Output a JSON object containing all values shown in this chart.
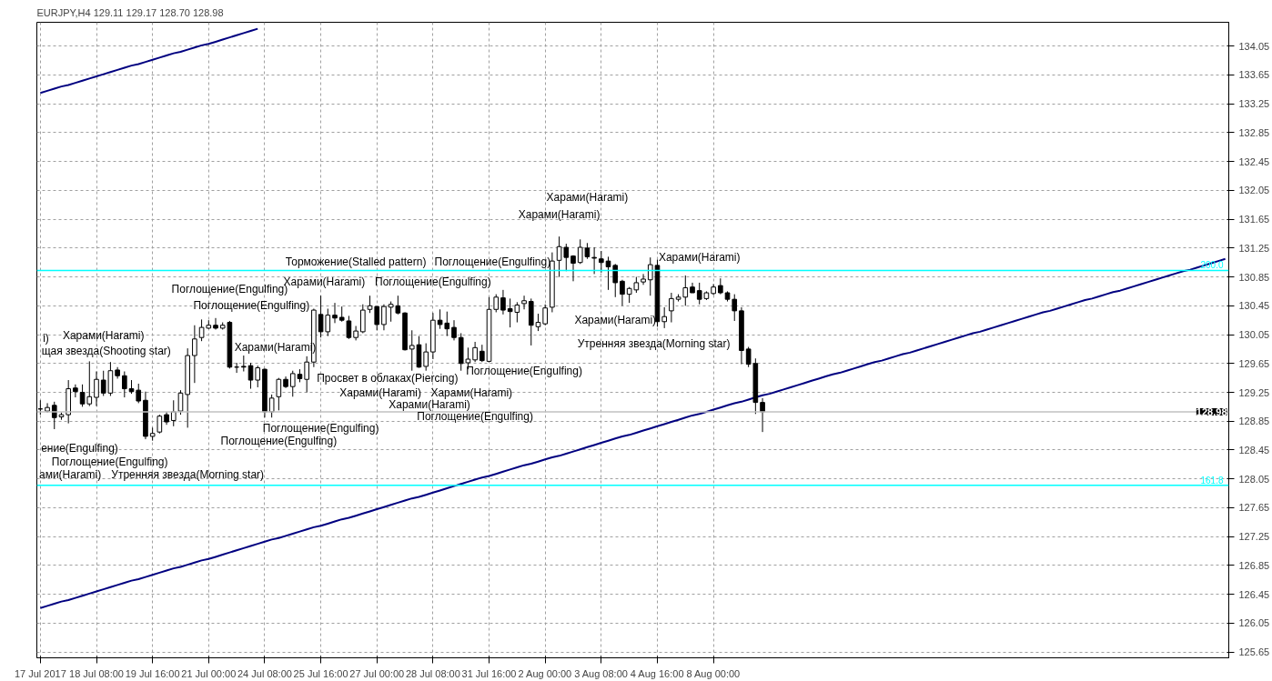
{
  "chart_data": {
    "type": "candlestick",
    "title": "EURJPY,H4  129.11 129.17 128.70 128.98",
    "categories": [
      "17 Jul 2017",
      null,
      null,
      null,
      null,
      null,
      null,
      null,
      "18 Jul 08:00",
      null,
      null,
      null,
      null,
      null,
      null,
      null,
      "19 Jul 16:00",
      null,
      null,
      null,
      null,
      null,
      null,
      null,
      "21 Jul 00:00",
      null,
      null,
      null,
      null,
      null,
      null,
      null,
      "24 Jul 08:00",
      null,
      null,
      null,
      null,
      null,
      null,
      null,
      "25 Jul 16:00",
      null,
      null,
      null,
      null,
      null,
      null,
      null,
      "27 Jul 00:00",
      null,
      null,
      null,
      null,
      null,
      null,
      null,
      "28 Jul 08:00",
      null,
      null,
      null,
      null,
      null,
      null,
      null,
      "31 Jul 16:00",
      null,
      null,
      null,
      null,
      null,
      null,
      null,
      "2 Aug 00:00",
      null,
      null,
      null,
      null,
      null,
      null,
      null,
      "3 Aug 08:00",
      null,
      null,
      null,
      null,
      null,
      null,
      null,
      "4 Aug 16:00",
      null,
      null,
      null,
      null,
      null,
      null,
      null,
      "8 Aug 00:00",
      null,
      null,
      null,
      null,
      null,
      null,
      null,
      null,
      null,
      null,
      null,
      null,
      null,
      null,
      null,
      null,
      null,
      null,
      null,
      null,
      null,
      null,
      null,
      null,
      null,
      null,
      null,
      null,
      null,
      null,
      null,
      null,
      null,
      null,
      null,
      null,
      null,
      null,
      null,
      null,
      null,
      null,
      null,
      null,
      null,
      null,
      null,
      null,
      null,
      null,
      null,
      null,
      null,
      null,
      null,
      null,
      null,
      null,
      null,
      null,
      null,
      null,
      null,
      null,
      null,
      null,
      null,
      null,
      null,
      null,
      null,
      null,
      null
    ],
    "ohlc": [
      [
        129.02,
        129.14,
        128.94,
        129.02
      ],
      [
        128.99,
        129.1,
        128.97,
        129.04
      ],
      [
        129.07,
        129.12,
        128.74,
        128.9
      ],
      [
        128.91,
        128.97,
        128.87,
        128.94
      ],
      [
        128.94,
        129.42,
        128.82,
        129.3
      ],
      [
        129.31,
        129.36,
        129.18,
        129.26
      ],
      [
        129.25,
        129.36,
        129.05,
        129.09
      ],
      [
        129.09,
        129.68,
        129.06,
        129.19
      ],
      [
        129.18,
        129.54,
        129.06,
        129.43
      ],
      [
        129.42,
        129.55,
        129.2,
        129.24
      ],
      [
        129.24,
        129.67,
        129.2,
        129.55
      ],
      [
        129.56,
        129.6,
        129.44,
        129.48
      ],
      [
        129.48,
        129.54,
        129.18,
        129.3
      ],
      [
        129.3,
        129.42,
        129.23,
        129.26
      ],
      [
        129.28,
        129.37,
        129.1,
        129.13
      ],
      [
        129.14,
        129.26,
        128.6,
        128.64
      ],
      [
        128.64,
        128.76,
        128.58,
        128.68
      ],
      [
        128.7,
        128.94,
        128.68,
        128.92
      ],
      [
        128.94,
        128.98,
        128.8,
        128.84
      ],
      [
        128.86,
        129.14,
        128.78,
        128.98
      ],
      [
        128.99,
        129.28,
        128.94,
        129.24
      ],
      [
        129.22,
        129.86,
        128.76,
        129.76
      ],
      [
        129.76,
        130.18,
        129.38,
        129.99
      ],
      [
        130.01,
        130.26,
        129.96,
        130.15
      ],
      [
        130.14,
        130.25,
        130.13,
        130.18
      ],
      [
        130.18,
        130.28,
        130.12,
        130.14
      ],
      [
        130.14,
        130.22,
        130.12,
        130.18
      ],
      [
        130.22,
        130.24,
        129.58,
        129.6
      ],
      [
        129.6,
        129.66,
        129.52,
        129.6
      ],
      [
        129.61,
        129.76,
        129.54,
        129.6
      ],
      [
        129.62,
        129.66,
        129.3,
        129.42
      ],
      [
        129.42,
        129.62,
        129.32,
        129.59
      ],
      [
        129.57,
        129.58,
        128.9,
        128.98
      ],
      [
        128.98,
        129.22,
        128.9,
        129.17
      ],
      [
        129.19,
        129.45,
        129.0,
        129.43
      ],
      [
        129.43,
        129.47,
        129.31,
        129.33
      ],
      [
        129.33,
        129.55,
        129.19,
        129.51
      ],
      [
        129.5,
        129.57,
        129.39,
        129.44
      ],
      [
        129.43,
        129.75,
        129.25,
        129.67
      ],
      [
        129.67,
        130.41,
        129.6,
        130.39
      ],
      [
        130.33,
        130.59,
        130.01,
        130.09
      ],
      [
        130.09,
        130.41,
        130.03,
        130.32
      ],
      [
        130.32,
        130.49,
        130.21,
        130.28
      ],
      [
        130.29,
        130.44,
        130.23,
        130.25
      ],
      [
        130.24,
        130.31,
        129.99,
        130.01
      ],
      [
        130.01,
        130.17,
        129.97,
        130.1
      ],
      [
        130.09,
        130.47,
        130.07,
        130.39
      ],
      [
        130.4,
        130.59,
        130.35,
        130.45
      ],
      [
        130.44,
        130.44,
        130.11,
        130.19
      ],
      [
        130.19,
        130.47,
        130.11,
        130.44
      ],
      [
        130.43,
        130.51,
        130.23,
        130.47
      ],
      [
        130.45,
        130.59,
        130.33,
        130.35
      ],
      [
        130.35,
        130.36,
        129.83,
        129.84
      ],
      [
        129.85,
        130.11,
        129.55,
        129.9
      ],
      [
        129.91,
        130.03,
        129.59,
        129.6
      ],
      [
        129.61,
        129.93,
        129.55,
        129.81
      ],
      [
        129.81,
        130.35,
        129.71,
        130.25
      ],
      [
        130.25,
        130.4,
        130.13,
        130.19
      ],
      [
        130.21,
        130.37,
        130.03,
        130.13
      ],
      [
        130.15,
        130.25,
        129.97,
        130.01
      ],
      [
        130.01,
        130.07,
        129.55,
        129.65
      ],
      [
        129.66,
        129.87,
        129.57,
        129.71
      ],
      [
        129.7,
        129.95,
        129.67,
        129.87
      ],
      [
        129.82,
        129.91,
        129.67,
        129.69
      ],
      [
        129.68,
        130.57,
        129.67,
        130.4
      ],
      [
        130.4,
        130.61,
        130.36,
        130.57
      ],
      [
        130.56,
        130.67,
        130.33,
        130.39
      ],
      [
        130.41,
        130.55,
        130.15,
        130.37
      ],
      [
        130.36,
        130.5,
        130.22,
        130.46
      ],
      [
        130.48,
        130.59,
        130.4,
        130.52
      ],
      [
        130.51,
        130.55,
        129.9,
        130.18
      ],
      [
        130.16,
        130.34,
        130.1,
        130.22
      ],
      [
        130.2,
        130.47,
        130.18,
        130.42
      ],
      [
        130.43,
        131.19,
        130.36,
        131.07
      ],
      [
        131.08,
        131.41,
        130.85,
        131.27
      ],
      [
        131.26,
        131.31,
        130.93,
        131.12
      ],
      [
        131.14,
        131.15,
        130.79,
        131.04
      ],
      [
        131.05,
        131.37,
        131.03,
        131.26
      ],
      [
        131.25,
        131.32,
        131.1,
        131.13
      ],
      [
        131.12,
        131.26,
        130.89,
        131.11
      ],
      [
        131.1,
        131.21,
        130.91,
        131.05
      ],
      [
        131.07,
        131.13,
        130.67,
        130.99
      ],
      [
        131.01,
        131.03,
        130.57,
        130.77
      ],
      [
        130.79,
        130.81,
        130.45,
        130.61
      ],
      [
        130.61,
        130.71,
        130.49,
        130.69
      ],
      [
        130.67,
        130.85,
        130.63,
        130.77
      ],
      [
        130.78,
        130.89,
        130.74,
        130.82
      ],
      [
        130.81,
        131.12,
        130.59,
        131.02
      ],
      [
        131.01,
        131.09,
        130.16,
        130.23
      ],
      [
        130.23,
        130.43,
        130.14,
        130.3
      ],
      [
        130.38,
        130.63,
        130.22,
        130.55
      ],
      [
        130.54,
        130.61,
        130.51,
        130.57
      ],
      [
        130.57,
        130.87,
        130.45,
        130.7
      ],
      [
        130.71,
        130.77,
        130.63,
        130.63
      ],
      [
        130.66,
        130.77,
        130.47,
        130.54
      ],
      [
        130.55,
        130.65,
        130.53,
        130.63
      ],
      [
        130.62,
        130.75,
        130.6,
        130.71
      ],
      [
        130.73,
        130.83,
        130.61,
        130.63
      ],
      [
        130.63,
        130.65,
        130.51,
        130.54
      ],
      [
        130.54,
        130.61,
        130.24,
        130.38
      ],
      [
        130.38,
        130.43,
        129.64,
        129.83
      ],
      [
        129.85,
        129.88,
        129.6,
        129.64
      ],
      [
        129.65,
        129.72,
        128.95,
        129.11
      ],
      [
        129.11,
        129.17,
        128.7,
        128.98
      ],
      null,
      null,
      null,
      null,
      null,
      null,
      null,
      null,
      null,
      null,
      null,
      null,
      null,
      null,
      null,
      null,
      null,
      null,
      null,
      null,
      null,
      null,
      null,
      null,
      null,
      null,
      null,
      null,
      null,
      null,
      null,
      null,
      null,
      null,
      null,
      null,
      null,
      null,
      null,
      null,
      null,
      null,
      null,
      null,
      null,
      null,
      null,
      null,
      null,
      null,
      null,
      null,
      null,
      null,
      null,
      null,
      null,
      null,
      null,
      null,
      null,
      null,
      null,
      null,
      null,
      null
    ],
    "series": [
      {
        "type": "line",
        "color": "#000080",
        "values": [
          126.26,
          126.29,
          126.32,
          126.35,
          126.37,
          126.4,
          126.43,
          126.46,
          126.49,
          126.52,
          126.55,
          126.58,
          126.61,
          126.64,
          126.66,
          126.69,
          126.72,
          126.75,
          126.78,
          126.81,
          126.83,
          126.86,
          126.89,
          126.92,
          126.94,
          126.97,
          127.0,
          127.03,
          127.06,
          127.09,
          127.12,
          127.15,
          127.18,
          127.21,
          127.23,
          127.26,
          127.29,
          127.32,
          127.35,
          127.38,
          127.4,
          127.43,
          127.46,
          127.49,
          127.51,
          127.54,
          127.57,
          127.6,
          127.63,
          127.66,
          127.69,
          127.72,
          127.75,
          127.78,
          127.8,
          127.83,
          127.86,
          127.89,
          127.92,
          127.95,
          127.98,
          128.01,
          128.04,
          128.07,
          128.09,
          128.12,
          128.15,
          128.18,
          128.21,
          128.24,
          128.26,
          128.29,
          128.32,
          128.35,
          128.37,
          128.4,
          128.43,
          128.46,
          128.49,
          128.52,
          128.55,
          128.58,
          128.61,
          128.64,
          128.66,
          128.69,
          128.72,
          128.75,
          128.78,
          128.81,
          128.84,
          128.87,
          128.9,
          128.93,
          128.95,
          128.98,
          129.01,
          129.04,
          129.07,
          129.1,
          129.12,
          129.15,
          129.18,
          129.21,
          129.23,
          129.26,
          129.29,
          129.32,
          129.35,
          129.38,
          129.41,
          129.44,
          129.47,
          129.5,
          129.52,
          129.55,
          129.58,
          129.61,
          129.64,
          129.67,
          129.69,
          129.72,
          129.75,
          129.78,
          129.8,
          129.83,
          129.86,
          129.89,
          129.92,
          129.95,
          129.98,
          130.01,
          130.04,
          130.07,
          130.09,
          130.12,
          130.15,
          130.18,
          130.21,
          130.24,
          130.27,
          130.3,
          130.33,
          130.36,
          130.38,
          130.41,
          130.44,
          130.47,
          130.5,
          130.53,
          130.55,
          130.58,
          130.61,
          130.64,
          130.66,
          130.69,
          130.72,
          130.75,
          130.78,
          130.81,
          130.84,
          130.87,
          130.9,
          130.93,
          130.95,
          130.98,
          131.01,
          131.04,
          131.07,
          131.1
        ]
      },
      {
        "type": "line",
        "color": "#000080",
        "values": [
          133.4,
          133.43,
          133.46,
          133.49,
          133.51,
          133.54,
          133.57,
          133.6,
          133.63,
          133.66,
          133.69,
          133.72,
          133.75,
          133.78,
          133.8,
          133.83,
          133.86,
          133.89,
          133.92,
          133.95,
          133.97,
          134.0,
          134.03,
          134.06,
          134.08,
          134.11,
          134.14,
          134.17,
          134.2,
          134.23,
          134.26,
          134.29,
          null,
          null,
          null,
          null,
          null,
          null,
          null,
          null,
          null,
          null,
          null,
          null,
          null,
          null,
          null,
          null,
          null,
          null,
          null,
          null,
          null,
          null,
          null,
          null,
          null,
          null,
          null,
          null,
          null,
          null,
          null,
          null,
          null,
          null,
          null,
          null,
          null,
          null,
          null,
          null,
          null,
          null,
          null,
          null,
          null,
          null,
          null,
          null,
          null,
          null,
          null,
          null,
          null,
          null,
          null,
          null,
          null,
          null,
          null,
          null,
          null,
          null,
          null,
          null,
          null,
          null,
          null,
          null,
          null,
          null,
          null,
          null,
          null,
          null,
          null,
          null,
          null,
          null,
          null,
          null,
          null,
          null,
          null,
          null,
          null,
          null,
          null,
          null,
          null,
          null,
          null,
          null,
          null,
          null,
          null,
          null,
          null,
          null,
          null,
          null,
          null,
          null,
          null,
          null,
          null,
          null,
          null,
          null,
          null,
          null,
          null,
          null,
          null,
          null,
          null,
          null,
          null,
          null,
          null,
          null,
          null,
          null,
          null,
          null,
          null,
          null,
          null,
          null,
          null,
          null,
          null,
          null,
          null,
          null,
          null,
          null,
          null,
          null
        ]
      }
    ],
    "ylim": [
      125.57,
      134.38
    ],
    "yticks": [
      125.65,
      126.05,
      126.45,
      126.85,
      127.25,
      127.65,
      128.05,
      128.45,
      128.85,
      129.25,
      129.65,
      130.05,
      130.45,
      130.85,
      131.25,
      131.65,
      132.05,
      132.45,
      132.85,
      133.25,
      133.65,
      134.05
    ],
    "ref_lines": [
      {
        "axis": "y",
        "value": 130.94,
        "color": "#00ffff"
      },
      {
        "axis": "y",
        "value": 127.96,
        "color": "#00ffff"
      },
      {
        "axis": "y",
        "value": 128.98,
        "label": "128.98",
        "color": "#c0c0c0"
      }
    ],
    "grid": true,
    "annotations": [
      "i)",
      "Харами(Harami)",
      "щая звезда(Shooting star)",
      "ение(Engulfing)",
      "Поглощение(Engulfing)",
      "ами(Harami)",
      "Утренняя звезда(Morning star)",
      "Поглощение(Engulfing)",
      "Поглощение(Engulfing)",
      "Харами(Harami)",
      "Харами(Harami)",
      "Поглощение(Engulfing)",
      "Поглощение(Engulfing)",
      "Просвет в облаках(Piercing)",
      "Торможение(Stalled pattern)",
      "Поглощение(Engulfing)",
      "Харами(Harami)",
      "Харами(Harami)",
      "Харами(Harami)",
      "Поглощение(Engulfing)",
      "Поглощение(Engulfing)",
      "Поглощение(Engulfing)",
      "Харами(Harami)",
      "Харами(Harami)",
      "Харами(Harami)",
      "Утренняя звезда(Morning star)",
      "Харами(Harami)",
      {
        "text": "200.0",
        "y": 130.94
      },
      {
        "text": "161.8",
        "y": 127.96
      }
    ]
  }
}
